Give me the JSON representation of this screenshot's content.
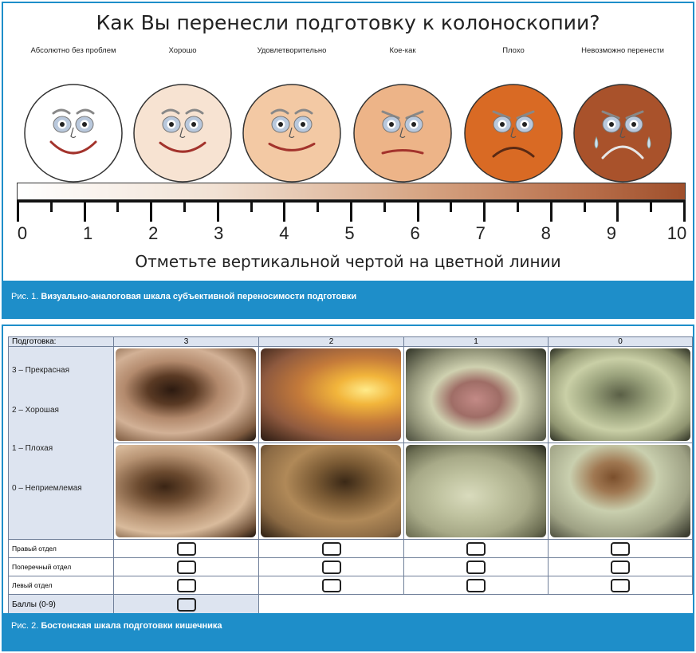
{
  "figure1": {
    "title": "Как Вы перенесли подготовку к колоноскопии?",
    "faces": [
      {
        "label": "Абсолютно без проблем",
        "color": "#ffffff",
        "mood": 2
      },
      {
        "label": "Хорошо",
        "color": "#f7e3d2",
        "mood": 1.4
      },
      {
        "label": "Удовлетворительно",
        "color": "#f3c9a4",
        "mood": 0.8
      },
      {
        "label": "Кое-как",
        "color": "#edb488",
        "mood": -0.5
      },
      {
        "label": "Плохо",
        "color": "#d96a24",
        "mood": -1.5
      },
      {
        "label": "Невозможно перенести",
        "color": "#a9522b",
        "mood": -2
      }
    ],
    "scale_numbers": [
      "0",
      "1",
      "2",
      "3",
      "4",
      "5",
      "6",
      "7",
      "8",
      "9",
      "10"
    ],
    "instruction": "Отметьте вертикальной чертой на цветной линии",
    "caption_prefix": "Рис. 1.",
    "caption_text": "Визуально-аналоговая шкала субъективной переносимости подготовки"
  },
  "figure2": {
    "header_label": "Подготовка:",
    "columns": [
      "3",
      "2",
      "1",
      "0"
    ],
    "side_items": [
      "3 – Прекрасная",
      "2 – Хорошая",
      "1 – Плохая",
      "0 – Неприемлемая"
    ],
    "rows": [
      "Правый отдел",
      "Поперечный отдел",
      "Левый отдел"
    ],
    "score_label": "Баллы (0-9)",
    "caption_prefix": "Рис. 2.",
    "caption_text": "Бостонская шкала подготовки кишечника"
  }
}
